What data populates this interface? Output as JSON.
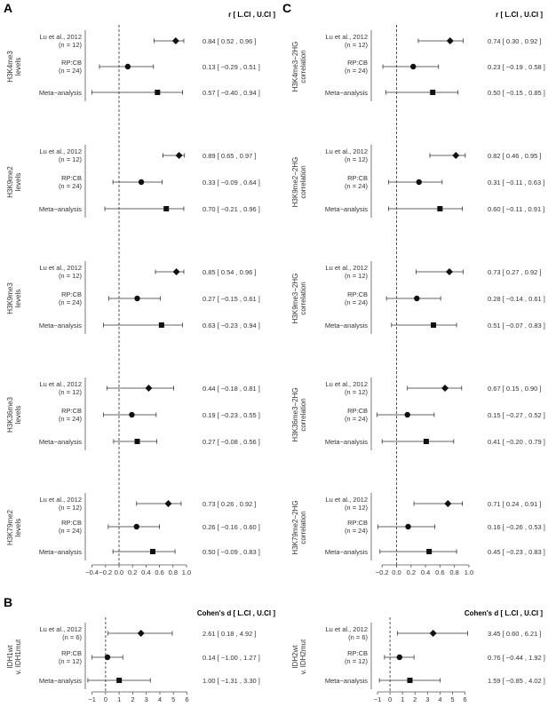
{
  "panels": [
    {
      "letter": "A",
      "header": "r [ L.CI , U.CI ]"
    },
    {
      "letter": "C",
      "header": "r [ L.CI , U.CI ]"
    },
    {
      "letter": "B",
      "header": "Cohen's d [ L.CI , U.CI ]"
    }
  ],
  "colors": {
    "points": "#111111",
    "lines": "#333333",
    "text": "#333333",
    "ref_line": "#444444"
  },
  "chart_data": [
    {
      "type": "forest",
      "panel": "A",
      "header": "r [ L.CI , U.CI ]",
      "xlim": [
        -0.5,
        1.0
      ],
      "ticks": [
        -0.4,
        -0.2,
        0.0,
        0.2,
        0.4,
        0.6,
        0.8,
        1.0
      ],
      "tick_labels": [
        "−0.4",
        "−0.2",
        "0.0",
        "0.2",
        "0.4",
        "0.6",
        "0.8",
        "1.0"
      ],
      "ref_line": 0,
      "groups": [
        {
          "label": "H3K4me3 levels",
          "rows": [
            {
              "label": "Lu et al., 2012",
              "n": "(n = 12)",
              "marker": "diamond",
              "est": 0.84,
              "lo": 0.52,
              "hi": 0.96,
              "text": "0.84 [ 0.52 , 0.96 ]"
            },
            {
              "label": "RP:CB",
              "n": "(n = 24)",
              "marker": "circle",
              "est": 0.13,
              "lo": -0.29,
              "hi": 0.51,
              "text": "0.13 [ −0.29 , 0.51 ]"
            },
            {
              "label": "Meta−analysis",
              "n": "",
              "marker": "square",
              "est": 0.57,
              "lo": -0.4,
              "hi": 0.94,
              "text": "0.57 [ −0.40 , 0.94 ]"
            }
          ]
        },
        {
          "label": "H3K9me2 levels",
          "rows": [
            {
              "label": "Lu et al., 2012",
              "n": "(n = 12)",
              "marker": "diamond",
              "est": 0.89,
              "lo": 0.65,
              "hi": 0.97,
              "text": "0.89 [ 0.65 , 0.97 ]"
            },
            {
              "label": "RP:CB",
              "n": "(n = 24)",
              "marker": "circle",
              "est": 0.33,
              "lo": -0.09,
              "hi": 0.64,
              "text": "0.33 [ −0.09 , 0.64 ]"
            },
            {
              "label": "Meta−analysis",
              "n": "",
              "marker": "square",
              "est": 0.7,
              "lo": -0.21,
              "hi": 0.96,
              "text": "0.70 [ −0.21 , 0.96 ]"
            }
          ]
        },
        {
          "label": "H3K9me3 levels",
          "rows": [
            {
              "label": "Lu et al., 2012",
              "n": "(n = 12)",
              "marker": "diamond",
              "est": 0.85,
              "lo": 0.54,
              "hi": 0.96,
              "text": "0.85 [ 0.54 , 0.96 ]"
            },
            {
              "label": "RP:CB",
              "n": "(n = 24)",
              "marker": "circle",
              "est": 0.27,
              "lo": -0.15,
              "hi": 0.61,
              "text": "0.27 [ −0.15 , 0.61 ]"
            },
            {
              "label": "Meta−analysis",
              "n": "",
              "marker": "square",
              "est": 0.63,
              "lo": -0.23,
              "hi": 0.94,
              "text": "0.63 [ −0.23 , 0.94 ]"
            }
          ]
        },
        {
          "label": "H3K36me3 levels",
          "rows": [
            {
              "label": "Lu et al., 2012",
              "n": "(n = 12)",
              "marker": "diamond",
              "est": 0.44,
              "lo": -0.18,
              "hi": 0.81,
              "text": "0.44 [ −0.18 , 0.81 ]"
            },
            {
              "label": "RP:CB",
              "n": "(n = 24)",
              "marker": "circle",
              "est": 0.19,
              "lo": -0.23,
              "hi": 0.55,
              "text": "0.19 [ −0.23 , 0.55 ]"
            },
            {
              "label": "Meta−analysis",
              "n": "",
              "marker": "square",
              "est": 0.27,
              "lo": -0.08,
              "hi": 0.56,
              "text": "0.27 [ −0.08 , 0.56 ]"
            }
          ]
        },
        {
          "label": "H3K79me2 levels",
          "rows": [
            {
              "label": "Lu et al., 2012",
              "n": "(n = 12)",
              "marker": "diamond",
              "est": 0.73,
              "lo": 0.26,
              "hi": 0.92,
              "text": "0.73 [ 0.26 , 0.92 ]"
            },
            {
              "label": "RP:CB",
              "n": "(n = 24)",
              "marker": "circle",
              "est": 0.26,
              "lo": -0.16,
              "hi": 0.6,
              "text": "0.26 [ −0.16 , 0.60 ]"
            },
            {
              "label": "Meta−analysis",
              "n": "",
              "marker": "square",
              "est": 0.5,
              "lo": -0.09,
              "hi": 0.83,
              "text": "0.50 [ −0.09 , 0.83 ]"
            }
          ]
        }
      ]
    },
    {
      "type": "forest",
      "panel": "C",
      "header": "r [ L.CI , U.CI ]",
      "xlim": [
        -0.35,
        1.05
      ],
      "ticks": [
        -0.2,
        0.0,
        0.2,
        0.4,
        0.6,
        0.8,
        1.0
      ],
      "tick_labels": [
        "−0.2",
        "0.0",
        "0.2",
        "0.4",
        "0.6",
        "0.8",
        "1.0"
      ],
      "ref_line": 0,
      "groups": [
        {
          "label": "H3K4me3−2HG correlation",
          "rows": [
            {
              "label": "Lu et al., 2012",
              "n": "(n = 12)",
              "marker": "diamond",
              "est": 0.74,
              "lo": 0.3,
              "hi": 0.92,
              "text": "0.74 [ 0.30 , 0.92 ]"
            },
            {
              "label": "RP:CB",
              "n": "(n = 24)",
              "marker": "circle",
              "est": 0.23,
              "lo": -0.19,
              "hi": 0.58,
              "text": "0.23 [ −0.19 , 0.58 ]"
            },
            {
              "label": "Meta−analysis",
              "n": "",
              "marker": "square",
              "est": 0.5,
              "lo": -0.15,
              "hi": 0.85,
              "text": "0.50 [ −0.15 , 0.85 ]"
            }
          ]
        },
        {
          "label": "H3K9me2−2HG correlation",
          "rows": [
            {
              "label": "Lu et al., 2012",
              "n": "(n = 12)",
              "marker": "diamond",
              "est": 0.82,
              "lo": 0.46,
              "hi": 0.95,
              "text": "0.82 [ 0.46 , 0.95 ]"
            },
            {
              "label": "RP:CB",
              "n": "(n = 24)",
              "marker": "circle",
              "est": 0.31,
              "lo": -0.11,
              "hi": 0.63,
              "text": "0.31 [ −0.11 , 0.63 ]"
            },
            {
              "label": "Meta−analysis",
              "n": "",
              "marker": "square",
              "est": 0.6,
              "lo": -0.11,
              "hi": 0.91,
              "text": "0.60 [ −0.11 , 0.91 ]"
            }
          ]
        },
        {
          "label": "H3K9me3−2HG correlation",
          "rows": [
            {
              "label": "Lu et al., 2012",
              "n": "(n = 12)",
              "marker": "diamond",
              "est": 0.73,
              "lo": 0.27,
              "hi": 0.92,
              "text": "0.73 [ 0.27 , 0.92 ]"
            },
            {
              "label": "RP:CB",
              "n": "(n = 24)",
              "marker": "circle",
              "est": 0.28,
              "lo": -0.14,
              "hi": 0.61,
              "text": "0.28 [ −0.14 , 0.61 ]"
            },
            {
              "label": "Meta−analysis",
              "n": "",
              "marker": "square",
              "est": 0.51,
              "lo": -0.07,
              "hi": 0.83,
              "text": "0.51 [ −0.07 , 0.83 ]"
            }
          ]
        },
        {
          "label": "H3K36me3−2HG correlation",
          "rows": [
            {
              "label": "Lu et al., 2012",
              "n": "(n = 12)",
              "marker": "diamond",
              "est": 0.67,
              "lo": 0.15,
              "hi": 0.9,
              "text": "0.67 [ 0.15 , 0.90 ]"
            },
            {
              "label": "RP:CB",
              "n": "(n = 24)",
              "marker": "circle",
              "est": 0.15,
              "lo": -0.27,
              "hi": 0.52,
              "text": "0.15 [ −0.27 , 0.52 ]"
            },
            {
              "label": "Meta−analysis",
              "n": "",
              "marker": "square",
              "est": 0.41,
              "lo": -0.2,
              "hi": 0.79,
              "text": "0.41 [ −0.20 , 0.79 ]"
            }
          ]
        },
        {
          "label": "H3K79me2−2HG correlation",
          "rows": [
            {
              "label": "Lu et al., 2012",
              "n": "(n = 12)",
              "marker": "diamond",
              "est": 0.71,
              "lo": 0.24,
              "hi": 0.91,
              "text": "0.71 [ 0.24 , 0.91 ]"
            },
            {
              "label": "RP:CB",
              "n": "(n = 24)",
              "marker": "circle",
              "est": 0.16,
              "lo": -0.26,
              "hi": 0.53,
              "text": "0.16 [ −0.26 , 0.53 ]"
            },
            {
              "label": "Meta−analysis",
              "n": "",
              "marker": "square",
              "est": 0.45,
              "lo": -0.23,
              "hi": 0.83,
              "text": "0.45 [ −0.23 , 0.83 ]"
            }
          ]
        }
      ]
    },
    {
      "type": "forest",
      "panel": "B",
      "header": "Cohen's d [ L.CI , U.CI ]",
      "xlim": [
        -1.5,
        6.1
      ],
      "ticks": [
        -1,
        0,
        1,
        2,
        3,
        4,
        5,
        6
      ],
      "tick_labels": [
        "−1",
        "0",
        "1",
        "2",
        "3",
        "4",
        "5",
        "6"
      ],
      "ref_line": 0,
      "groups": [
        {
          "label": "IDH1wt v. IDH1mut",
          "rows": [
            {
              "label": "Lu et al., 2012",
              "n": "(n = 6)",
              "marker": "diamond",
              "est": 2.61,
              "lo": 0.18,
              "hi": 4.92,
              "text": "2.61 [ 0.18 , 4.92 ]"
            },
            {
              "label": "RP:CB",
              "n": "(n = 12)",
              "marker": "circle",
              "est": 0.14,
              "lo": -1.0,
              "hi": 1.27,
              "text": "0.14 [ −1.00 , 1.27 ]"
            },
            {
              "label": "Meta−analysis",
              "n": "",
              "marker": "square",
              "est": 1.0,
              "lo": -1.31,
              "hi": 3.3,
              "text": "1.00 [ −1.31 , 3.30 ]"
            }
          ]
        }
      ]
    },
    {
      "type": "forest",
      "panel": "B",
      "header": "Cohen's d [ L.CI , U.CI ]",
      "xlim": [
        -1.5,
        6.6
      ],
      "ticks": [
        -1,
        0,
        1,
        2,
        3,
        4,
        5,
        6
      ],
      "tick_labels": [
        "−1",
        "0",
        "1",
        "2",
        "3",
        "4",
        "5",
        "6"
      ],
      "ref_line": 0,
      "groups": [
        {
          "label": "IDH2wt v. IDH2mut",
          "rows": [
            {
              "label": "Lu et al., 2012",
              "n": "(n = 6)",
              "marker": "diamond",
              "est": 3.45,
              "lo": 0.6,
              "hi": 6.21,
              "text": "3.45 [ 0.60 , 6.21 ]"
            },
            {
              "label": "RP:CB",
              "n": "(n = 12)",
              "marker": "circle",
              "est": 0.76,
              "lo": -0.44,
              "hi": 1.92,
              "text": "0.76 [ −0.44 , 1.92 ]"
            },
            {
              "label": "Meta−analysis",
              "n": "",
              "marker": "square",
              "est": 1.59,
              "lo": -0.85,
              "hi": 4.02,
              "text": "1.59 [ −0.85 , 4.02 ]"
            }
          ]
        }
      ]
    }
  ]
}
